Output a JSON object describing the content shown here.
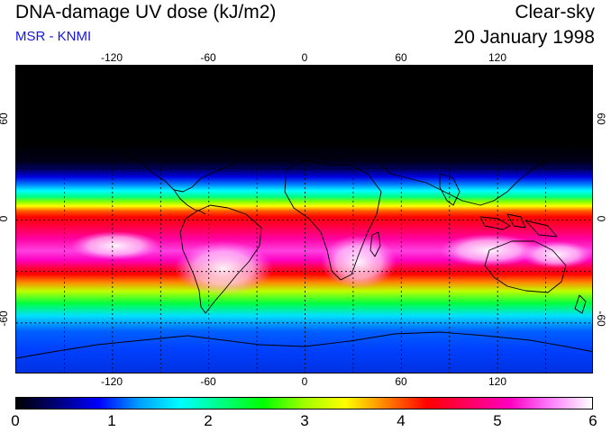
{
  "header": {
    "title": "DNA-damage UV dose (kJ/m2)",
    "credit": "MSR - KNMI",
    "sky_condition": "Clear-sky",
    "date": "20 January 1998"
  },
  "map": {
    "projection": "equirectangular",
    "lon_range": [
      -180,
      180
    ],
    "lat_range": [
      -90,
      90
    ],
    "lon_ticks": [
      "-120",
      "-60",
      "0",
      "60",
      "120"
    ],
    "lat_ticks": [
      "60",
      "0",
      "-60"
    ],
    "grid": "dashed every 30 degrees"
  },
  "colorbar": {
    "labels": [
      "0",
      "1",
      "2",
      "3",
      "4",
      "5",
      "6"
    ],
    "min": 0,
    "max": 6,
    "colors": [
      "#000000",
      "#00007a",
      "#0000ff",
      "#00a0ff",
      "#00ffff",
      "#00ff80",
      "#00ff00",
      "#a0ff00",
      "#ffff00",
      "#ff8000",
      "#ff0000",
      "#ff0060",
      "#ff00c0",
      "#ff80ff",
      "#ffffff"
    ]
  },
  "colors": {
    "title_text": "#000000",
    "credit_text": "#1414e6",
    "coastline": "#000000"
  }
}
